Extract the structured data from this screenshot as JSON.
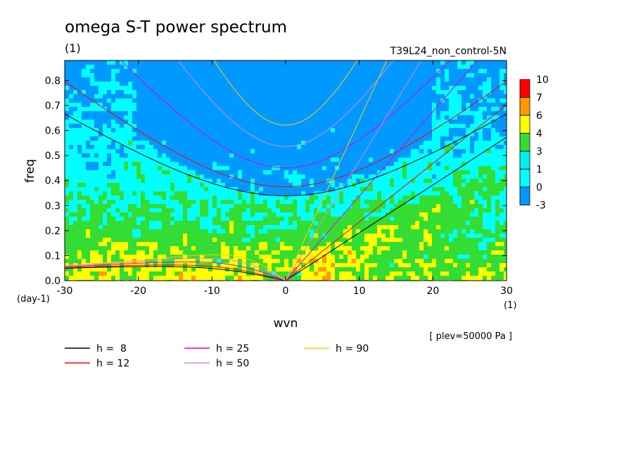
{
  "chart_data": {
    "type": "heatmap",
    "title": "omega S-T power spectrum",
    "subtitle": "(1)",
    "run_label": "T39L24_non_control-5N",
    "xlabel": "wvn",
    "ylabel": "freq",
    "x_unit_label": "(1)",
    "y_unit_label": "(day-1)",
    "level_note": "[ plev=50000 Pa ]",
    "xlim": [
      -30,
      30
    ],
    "ylim": [
      0,
      0.88
    ],
    "x_ticks": [
      -30,
      -20,
      -10,
      0,
      10,
      20,
      30
    ],
    "x_tick_labels": [
      "-30",
      "-20",
      "-10",
      "0",
      "10",
      "20",
      "30"
    ],
    "y_ticks": [
      0,
      0.1,
      0.2,
      0.3,
      0.4,
      0.5,
      0.6,
      0.7,
      0.8
    ],
    "y_tick_labels": [
      "0.0",
      "0.1",
      "0.2",
      "0.3",
      "0.4",
      "0.5",
      "0.6",
      "0.7",
      "0.8"
    ],
    "colorbar": {
      "levels": [
        "10",
        "7",
        "6",
        "4",
        "3",
        "1",
        "0",
        "-3"
      ],
      "colors": [
        "#ff0000",
        "#ff9900",
        "#ffff00",
        "#33dd33",
        "#00eeee",
        "#00ffff",
        "#0099ff",
        "#0055ff"
      ]
    },
    "field_colors": {
      "lowest": "#0099ff",
      "low": "#00ffff",
      "mid": "#33dd33",
      "high": "#ffff00",
      "higher": "#ff9900",
      "highest": "#ff0000"
    },
    "dispersion_curves": [
      {
        "label": "h =  8",
        "h": 8,
        "color": "#000000"
      },
      {
        "label": "h = 12",
        "h": 12,
        "color": "#ff0000"
      },
      {
        "label": "h = 25",
        "h": 25,
        "color": "#dd00dd"
      },
      {
        "label": "h = 50",
        "h": 50,
        "color": "#dd88dd"
      },
      {
        "label": "h = 90",
        "h": 90,
        "color": "#ffcc00"
      }
    ],
    "grid": false,
    "legend_position": "bottom-left"
  }
}
